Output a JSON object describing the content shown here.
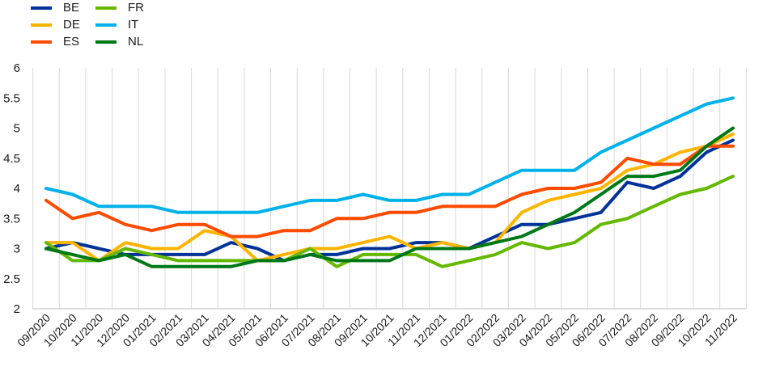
{
  "chart_data": {
    "type": "line",
    "categories": [
      "09/2020",
      "10/2020",
      "11/2020",
      "12/2020",
      "01/2021",
      "02/2021",
      "03/2021",
      "04/2021",
      "05/2021",
      "06/2021",
      "07/2021",
      "08/2021",
      "09/2021",
      "10/2021",
      "11/2021",
      "12/2021",
      "01/2022",
      "02/2022",
      "03/2022",
      "04/2022",
      "05/2022",
      "06/2022",
      "07/2022",
      "08/2022",
      "09/2022",
      "10/2022",
      "11/2022"
    ],
    "y_ticks": [
      "2",
      "2.5",
      "3",
      "3.5",
      "4",
      "4.5",
      "5",
      "5.5",
      "6"
    ],
    "ylim": [
      2,
      6
    ],
    "grid": "vertical",
    "legend_position": "top-left",
    "series": [
      {
        "name": "BE",
        "color": "#003299",
        "values": [
          3.0,
          3.1,
          3.0,
          2.9,
          2.9,
          2.9,
          2.9,
          3.1,
          3.0,
          2.8,
          2.9,
          2.9,
          3.0,
          3.0,
          3.1,
          3.1,
          3.0,
          3.2,
          3.4,
          3.4,
          3.5,
          3.6,
          4.1,
          4.0,
          4.2,
          4.6,
          4.8
        ]
      },
      {
        "name": "DE",
        "color": "#FFB400",
        "values": [
          3.1,
          3.1,
          2.8,
          3.1,
          3.0,
          3.0,
          3.3,
          3.2,
          2.8,
          2.9,
          3.0,
          3.0,
          3.1,
          3.2,
          3.0,
          3.1,
          3.0,
          3.1,
          3.6,
          3.8,
          3.9,
          4.0,
          4.3,
          4.4,
          4.6,
          4.7,
          4.9
        ]
      },
      {
        "name": "ES",
        "color": "#FF4B00",
        "values": [
          3.8,
          3.5,
          3.6,
          3.4,
          3.3,
          3.4,
          3.4,
          3.2,
          3.2,
          3.3,
          3.3,
          3.5,
          3.5,
          3.6,
          3.6,
          3.7,
          3.7,
          3.7,
          3.9,
          4.0,
          4.0,
          4.1,
          4.5,
          4.4,
          4.4,
          4.7,
          4.7
        ]
      },
      {
        "name": "FR",
        "color": "#65B800",
        "values": [
          3.1,
          2.8,
          2.8,
          3.0,
          2.9,
          2.8,
          2.8,
          2.8,
          2.8,
          2.8,
          3.0,
          2.7,
          2.9,
          2.9,
          2.9,
          2.7,
          2.8,
          2.9,
          3.1,
          3.0,
          3.1,
          3.4,
          3.5,
          3.7,
          3.9,
          4.0,
          4.2
        ]
      },
      {
        "name": "IT",
        "color": "#00B1EA",
        "values": [
          4.0,
          3.9,
          3.7,
          3.7,
          3.7,
          3.6,
          3.6,
          3.6,
          3.6,
          3.7,
          3.8,
          3.8,
          3.9,
          3.8,
          3.8,
          3.9,
          3.9,
          4.1,
          4.3,
          4.3,
          4.3,
          4.6,
          4.8,
          5.0,
          5.2,
          5.4,
          5.5
        ]
      },
      {
        "name": "NL",
        "color": "#007816",
        "values": [
          3.0,
          2.9,
          2.8,
          2.9,
          2.7,
          2.7,
          2.7,
          2.7,
          2.8,
          2.8,
          2.9,
          2.8,
          2.8,
          2.8,
          3.0,
          3.0,
          3.0,
          3.1,
          3.2,
          3.4,
          3.6,
          3.9,
          4.2,
          4.2,
          4.3,
          4.7,
          5.0
        ]
      }
    ]
  }
}
